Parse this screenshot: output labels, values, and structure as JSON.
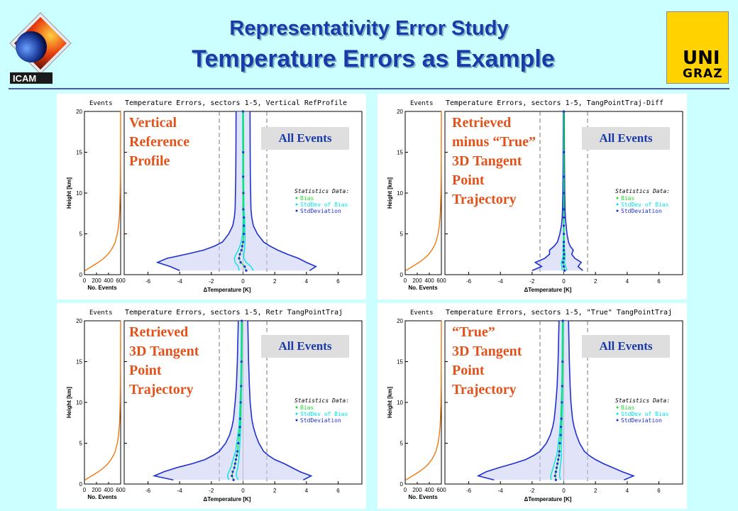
{
  "header": {
    "title_line1": "Representativity Error Study",
    "title_line2": "Temperature Errors as Example",
    "logo_left_text": "ICAM",
    "logo_right_line1": "UNI",
    "logo_right_line2": "GRAZ"
  },
  "colors": {
    "bias": "#22dd33",
    "stddev_of_bias": "#00e5e5",
    "stddev": "#1f2fd0",
    "events": "#f07a10",
    "label": "#e2521a",
    "accent": "#1a3aa8"
  },
  "chart_data": [
    {
      "type": "line",
      "title": "Temperature Errors, sectors 1-5, Vertical RefProfile",
      "label_box": "Vertical\nReference\nProfile",
      "events_box": "All Events",
      "events_panel": {
        "title": "Events",
        "xlabel": "No. Events",
        "xlim": [
          0,
          600
        ],
        "x_ticks": [
          "0",
          "200",
          "400",
          "600"
        ]
      },
      "xlabel": "ΔTemperature [K]",
      "ylabel": "Height [km]",
      "xlim": [
        -7.5,
        7.5
      ],
      "ylim": [
        0,
        20
      ],
      "x_ticks": [
        "-6",
        "-4",
        "-2",
        "0",
        "2",
        "4",
        "6"
      ],
      "y_ticks": [
        "0",
        "5",
        "10",
        "15",
        "20"
      ],
      "legend": {
        "title": "Statistics Data:",
        "items": [
          "Bias",
          "StdDev of Bias",
          "StdDeviation"
        ]
      },
      "height_km": [
        0.5,
        1,
        1.5,
        2,
        2.5,
        3,
        3.5,
        4,
        5,
        6,
        7,
        8,
        10,
        12,
        15,
        20
      ],
      "events": [
        10,
        120,
        230,
        320,
        390,
        440,
        480,
        510,
        545,
        565,
        578,
        585,
        592,
        596,
        598,
        600
      ],
      "stddev": [
        4.2,
        4.6,
        4.0,
        3.5,
        2.8,
        2.2,
        1.7,
        1.3,
        0.9,
        0.65,
        0.55,
        0.5,
        0.48,
        0.46,
        0.45,
        0.44
      ],
      "stddev_left": [
        -4.0,
        -4.6,
        -5.4,
        -4.8,
        -3.6,
        -2.5,
        -1.8,
        -1.3,
        -0.9,
        -0.65,
        -0.55,
        -0.5,
        -0.48,
        -0.46,
        -0.45,
        -0.44
      ],
      "bias": [
        0.2,
        0.1,
        -0.15,
        -0.25,
        -0.2,
        -0.1,
        -0.05,
        0.0,
        0.05,
        0.05,
        0.05,
        0.02,
        0.02,
        0.01,
        0.01,
        0.0
      ],
      "stddev_of_bias": [
        0.45,
        0.4,
        0.35,
        0.3,
        0.25,
        0.2,
        0.15,
        0.12,
        0.08,
        0.06,
        0.05,
        0.04,
        0.03,
        0.03,
        0.03,
        0.03
      ],
      "dashed_lines": [
        -1.5,
        1.5
      ]
    },
    {
      "type": "line",
      "title": "Temperature Errors, sectors 1-5, TangPointTraj-Diff",
      "label_box": "Retrieved\nminus “True”\n3D Tangent\nPoint\nTrajectory",
      "events_box": "All Events",
      "events_panel": {
        "title": "Events",
        "xlabel": "No. Events",
        "xlim": [
          0,
          600
        ],
        "x_ticks": [
          "0",
          "200",
          "400",
          "600"
        ]
      },
      "xlabel": "ΔTemperature [K]",
      "ylabel": "Height [km]",
      "xlim": [
        -7.5,
        7.5
      ],
      "ylim": [
        0,
        20
      ],
      "x_ticks": [
        "-6",
        "-4",
        "-2",
        "0",
        "2",
        "4",
        "6"
      ],
      "y_ticks": [
        "0",
        "5",
        "10",
        "15",
        "20"
      ],
      "legend": {
        "title": "Statistics Data:",
        "items": [
          "Bias",
          "StdDev of Bias",
          "StdDeviation"
        ]
      },
      "height_km": [
        0.5,
        1,
        1.5,
        2,
        2.5,
        3,
        3.5,
        4,
        5,
        6,
        7,
        8,
        10,
        12,
        15,
        20
      ],
      "events": [
        10,
        120,
        230,
        320,
        390,
        440,
        480,
        510,
        545,
        565,
        578,
        585,
        592,
        596,
        598,
        600
      ],
      "stddev": [
        1.2,
        0.9,
        1.1,
        0.7,
        0.5,
        0.6,
        0.4,
        0.3,
        0.2,
        0.15,
        0.1,
        0.08,
        0.06,
        0.05,
        0.04,
        0.03
      ],
      "stddev_left": [
        -2.0,
        -1.4,
        -1.8,
        -1.2,
        -0.9,
        -0.9,
        -0.6,
        -0.4,
        -0.25,
        -0.15,
        -0.1,
        -0.08,
        -0.06,
        -0.05,
        -0.04,
        -0.03
      ],
      "bias": [
        0.05,
        0.0,
        -0.05,
        0.0,
        0.02,
        0.0,
        0.0,
        0.0,
        0.0,
        0.0,
        0.0,
        0.0,
        0.0,
        0.0,
        0.0,
        0.0
      ],
      "stddev_of_bias": [
        0.15,
        0.12,
        0.1,
        0.08,
        0.06,
        0.05,
        0.04,
        0.03,
        0.02,
        0.02,
        0.01,
        0.01,
        0.01,
        0.01,
        0.01,
        0.01
      ],
      "dashed_lines": [
        -1.5,
        1.5
      ]
    },
    {
      "type": "line",
      "title": "Temperature Errors, sectors 1-5, Retr TangPointTraj",
      "label_box": "Retrieved\n3D Tangent\nPoint\nTrajectory",
      "events_box": "All Events",
      "events_panel": {
        "title": "Events",
        "xlabel": "No. Events",
        "xlim": [
          0,
          600
        ],
        "x_ticks": [
          "0",
          "200",
          "400",
          "600"
        ]
      },
      "xlabel": "ΔTemperature [K]",
      "ylabel": "Height [km]",
      "xlim": [
        -7.5,
        7.5
      ],
      "ylim": [
        0,
        20
      ],
      "x_ticks": [
        "-6",
        "-4",
        "-2",
        "0",
        "2",
        "4",
        "6"
      ],
      "y_ticks": [
        "0",
        "5",
        "10",
        "15",
        "20"
      ],
      "legend": {
        "title": "Statistics Data:",
        "items": [
          "Bias",
          "StdDev of Bias",
          "StdDeviation"
        ]
      },
      "height_km": [
        0.5,
        1,
        1.5,
        2,
        2.5,
        3,
        3.5,
        4,
        5,
        6,
        7,
        8,
        10,
        12,
        15,
        20
      ],
      "events": [
        10,
        120,
        230,
        320,
        390,
        440,
        480,
        510,
        545,
        565,
        578,
        585,
        592,
        596,
        598,
        600
      ],
      "stddev": [
        3.8,
        4.3,
        3.6,
        3.1,
        2.6,
        2.0,
        1.6,
        1.3,
        1.0,
        0.8,
        0.65,
        0.55,
        0.45,
        0.4,
        0.35,
        0.3
      ],
      "stddev_left": [
        -4.4,
        -5.6,
        -5.0,
        -4.2,
        -3.2,
        -2.4,
        -1.9,
        -1.5,
        -1.1,
        -0.85,
        -0.7,
        -0.6,
        -0.5,
        -0.42,
        -0.36,
        -0.3
      ],
      "bias": [
        -0.6,
        -0.7,
        -0.65,
        -0.55,
        -0.5,
        -0.45,
        -0.4,
        -0.35,
        -0.3,
        -0.25,
        -0.2,
        -0.18,
        -0.15,
        -0.12,
        -0.1,
        -0.08
      ],
      "stddev_of_bias": [
        0.3,
        0.28,
        0.25,
        0.22,
        0.2,
        0.18,
        0.15,
        0.12,
        0.1,
        0.08,
        0.06,
        0.05,
        0.04,
        0.03,
        0.03,
        0.03
      ],
      "dashed_lines": [
        -1.5,
        1.5
      ]
    },
    {
      "type": "line",
      "title": "Temperature Errors, sectors 1-5, \"True\" TangPointTraj",
      "label_box": "“True”\n3D Tangent\nPoint\nTrajectory",
      "events_box": "All Events",
      "events_panel": {
        "title": "Events",
        "xlabel": "No. Events",
        "xlim": [
          0,
          600
        ],
        "x_ticks": [
          "0",
          "200",
          "400",
          "600"
        ]
      },
      "xlabel": "ΔTemperature [K]",
      "ylabel": "Height [km]",
      "xlim": [
        -7.5,
        7.5
      ],
      "ylim": [
        0,
        20
      ],
      "x_ticks": [
        "-6",
        "-4",
        "-2",
        "0",
        "2",
        "4",
        "6"
      ],
      "y_ticks": [
        "0",
        "5",
        "10",
        "15",
        "20"
      ],
      "legend": {
        "title": "Statistics Data:",
        "items": [
          "Bias",
          "StdDev of Bias",
          "StdDeviation"
        ]
      },
      "height_km": [
        0.5,
        1,
        1.5,
        2,
        2.5,
        3,
        3.5,
        4,
        5,
        6,
        7,
        8,
        10,
        12,
        15,
        20
      ],
      "events": [
        10,
        120,
        230,
        320,
        390,
        440,
        480,
        510,
        545,
        565,
        578,
        585,
        592,
        596,
        598,
        600
      ],
      "stddev": [
        3.8,
        4.4,
        3.7,
        3.1,
        2.5,
        2.0,
        1.6,
        1.3,
        1.0,
        0.8,
        0.65,
        0.55,
        0.45,
        0.4,
        0.35,
        0.3
      ],
      "stddev_left": [
        -4.4,
        -5.4,
        -4.9,
        -4.1,
        -3.2,
        -2.4,
        -1.9,
        -1.5,
        -1.1,
        -0.85,
        -0.7,
        -0.6,
        -0.5,
        -0.42,
        -0.36,
        -0.3
      ],
      "bias": [
        -0.5,
        -0.55,
        -0.5,
        -0.45,
        -0.4,
        -0.35,
        -0.3,
        -0.28,
        -0.25,
        -0.2,
        -0.18,
        -0.15,
        -0.12,
        -0.1,
        -0.08,
        -0.06
      ],
      "stddev_of_bias": [
        0.3,
        0.28,
        0.25,
        0.22,
        0.2,
        0.18,
        0.15,
        0.12,
        0.1,
        0.08,
        0.06,
        0.05,
        0.04,
        0.03,
        0.03,
        0.03
      ],
      "dashed_lines": [
        -1.5,
        1.5
      ]
    }
  ]
}
